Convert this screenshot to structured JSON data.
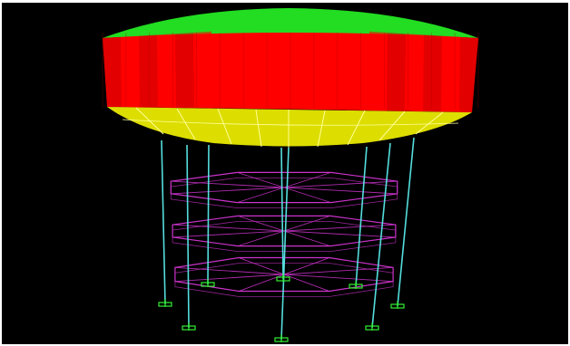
{
  "scene": {
    "description_free": true,
    "colors": {
      "background": "#000000",
      "frame": "#ffffff",
      "tank_roof": "#22dd22",
      "tank_wall": "#ff0000",
      "tank_wall_shade": "#cc0000",
      "tank_bottom": "#dddd00",
      "mesh_lines": "#ffff99",
      "columns": "#55dddd",
      "bracing": "#cc33cc",
      "supports": "#33ee33"
    },
    "structure": {
      "column_count": 8,
      "bracing_levels": 3,
      "support_count": 8,
      "wall_panels": 16
    }
  }
}
